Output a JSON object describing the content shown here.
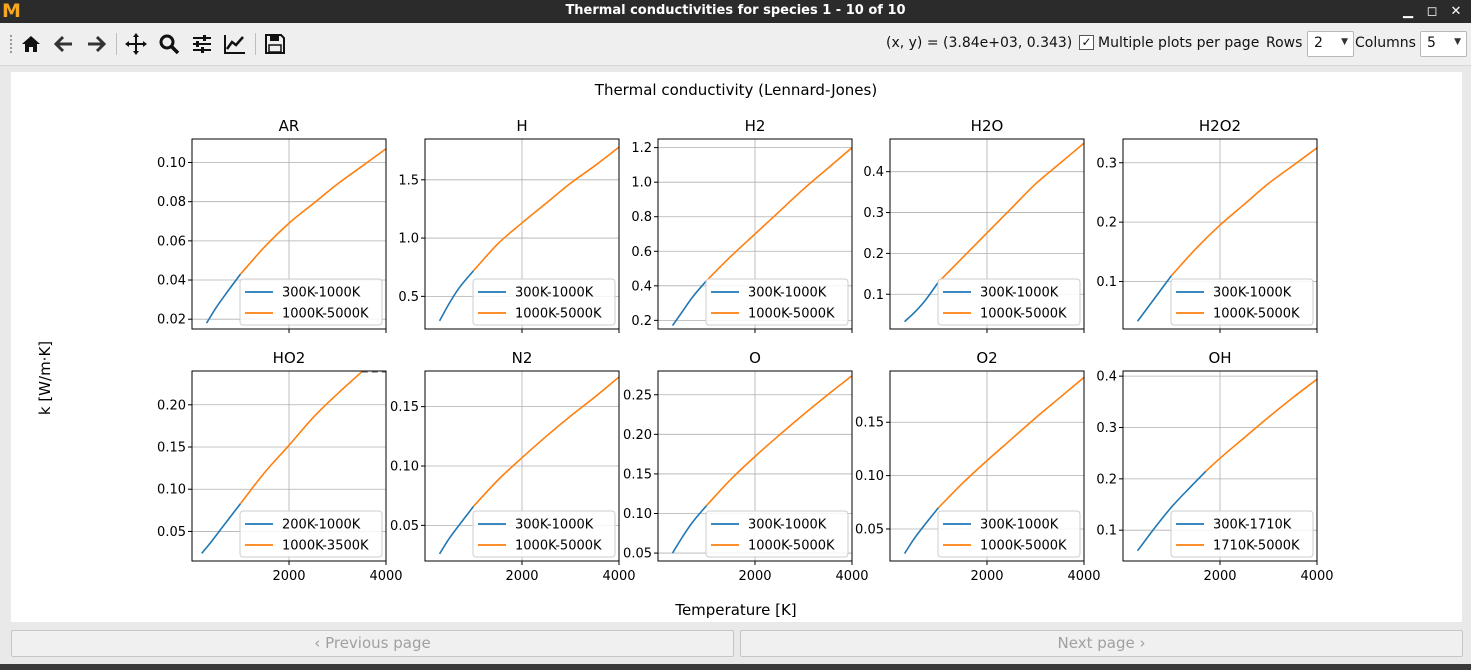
{
  "window": {
    "title": "Thermal conductivities for species 1 - 10 of 10",
    "logo": "M",
    "controls": [
      "minimize-icon",
      "restore-icon",
      "close-icon"
    ]
  },
  "toolbar": {
    "tools": [
      "home-icon",
      "back-icon",
      "forward-icon",
      "pan-icon",
      "zoom-icon",
      "configure-subplots-icon",
      "edit-axes-icon",
      "save-icon"
    ],
    "coords": "(x, y) = (3.84e+03, 0.343)",
    "multiple_plots_label": "Multiple plots per page",
    "multiple_plots_checked": true,
    "rows_label": "Rows",
    "rows_value": "2",
    "columns_label": "Columns",
    "columns_value": "5"
  },
  "navigation": {
    "previous_label": "Previous page",
    "next_label": "Next page"
  },
  "colors": {
    "series_low": "#1f77b4",
    "series_high": "#ff7f0e",
    "grid": "#b0b0b0"
  },
  "chart_data": {
    "type": "line",
    "suptitle": "Thermal conductivity (Lennard-Jones)",
    "xlabel": "Temperature [K]",
    "ylabel": "k [W/m·K]",
    "grid": true,
    "legend_placement": "lower-right",
    "xlim": [
      0,
      4000
    ],
    "x_ticks": [
      2000,
      4000
    ],
    "panels": [
      {
        "title": "AR",
        "ylim": [
          0.015,
          0.112
        ],
        "y_ticks": [
          0.02,
          0.04,
          0.06,
          0.08,
          0.1
        ],
        "y_tick_labels": [
          "0.02",
          "0.04",
          "0.06",
          "0.08",
          "0.10"
        ],
        "series": [
          {
            "name": "300K-1000K",
            "x": [
              300,
              500,
              700,
              1000
            ],
            "y": [
              0.018,
              0.026,
              0.033,
              0.043
            ]
          },
          {
            "name": "1000K-5000K",
            "x": [
              1000,
              1500,
              2000,
              2500,
              3000,
              3500,
              4000
            ],
            "y": [
              0.043,
              0.057,
              0.069,
              0.079,
              0.089,
              0.098,
              0.107
            ]
          }
        ]
      },
      {
        "title": "H",
        "ylim": [
          0.22,
          1.85
        ],
        "y_ticks": [
          0.5,
          1.0,
          1.5
        ],
        "y_tick_labels": [
          "0.5",
          "1.0",
          "1.5"
        ],
        "series": [
          {
            "name": "300K-1000K",
            "x": [
              300,
              500,
              700,
              1000
            ],
            "y": [
              0.29,
              0.44,
              0.57,
              0.72
            ]
          },
          {
            "name": "1000K-5000K",
            "x": [
              1000,
              1500,
              2000,
              2500,
              3000,
              3500,
              4000
            ],
            "y": [
              0.72,
              0.95,
              1.13,
              1.3,
              1.47,
              1.62,
              1.78
            ]
          }
        ]
      },
      {
        "title": "H2",
        "ylim": [
          0.15,
          1.25
        ],
        "y_ticks": [
          0.2,
          0.4,
          0.6,
          0.8,
          1.0,
          1.2
        ],
        "y_tick_labels": [
          "0.2",
          "0.4",
          "0.6",
          "0.8",
          "1.0",
          "1.2"
        ],
        "series": [
          {
            "name": "300K-1000K",
            "x": [
              300,
              500,
              700,
              1000
            ],
            "y": [
              0.17,
              0.25,
              0.33,
              0.43
            ]
          },
          {
            "name": "1000K-5000K",
            "x": [
              1000,
              1500,
              2000,
              2500,
              3000,
              3500,
              4000
            ],
            "y": [
              0.43,
              0.57,
              0.7,
              0.83,
              0.96,
              1.08,
              1.2
            ]
          }
        ]
      },
      {
        "title": "H2O",
        "ylim": [
          0.015,
          0.48
        ],
        "y_ticks": [
          0.1,
          0.2,
          0.3,
          0.4
        ],
        "y_tick_labels": [
          "0.1",
          "0.2",
          "0.3",
          "0.4"
        ],
        "series": [
          {
            "name": "300K-1000K",
            "x": [
              300,
              500,
              700,
              1000
            ],
            "y": [
              0.033,
              0.055,
              0.081,
              0.13
            ]
          },
          {
            "name": "1000K-5000K",
            "x": [
              1000,
              1500,
              2000,
              2500,
              3000,
              3500,
              4000
            ],
            "y": [
              0.13,
              0.19,
              0.25,
              0.31,
              0.37,
              0.42,
              0.47
            ]
          }
        ]
      },
      {
        "title": "H2O2",
        "ylim": [
          0.02,
          0.34
        ],
        "y_ticks": [
          0.1,
          0.2,
          0.3
        ],
        "y_tick_labels": [
          "0.1",
          "0.2",
          "0.3"
        ],
        "series": [
          {
            "name": "300K-1000K",
            "x": [
              300,
              500,
              700,
              1000
            ],
            "y": [
              0.033,
              0.055,
              0.077,
              0.11
            ]
          },
          {
            "name": "1000K-5000K",
            "x": [
              1000,
              1500,
              2000,
              2500,
              3000,
              3500,
              4000
            ],
            "y": [
              0.11,
              0.155,
              0.195,
              0.23,
              0.265,
              0.295,
              0.325
            ]
          }
        ]
      },
      {
        "title": "HO2",
        "ylim": [
          0.015,
          0.24
        ],
        "y_ticks": [
          0.05,
          0.1,
          0.15,
          0.2
        ],
        "y_tick_labels": [
          "0.05",
          "0.10",
          "0.15",
          "0.20"
        ],
        "series": [
          {
            "name": "200K-1000K",
            "x": [
              200,
              400,
              600,
              800,
              1000
            ],
            "y": [
              0.024,
              0.038,
              0.053,
              0.068,
              0.083
            ]
          },
          {
            "name": "1000K-3500K",
            "x": [
              1000,
              1500,
              2000,
              2500,
              3000,
              3500
            ],
            "y": [
              0.083,
              0.12,
              0.152,
              0.185,
              0.213,
              0.239
            ]
          }
        ],
        "extrapolation": {
          "x": [
            3500,
            4000
          ],
          "y": [
            0.239,
            0.239
          ]
        }
      },
      {
        "title": "N2",
        "ylim": [
          0.02,
          0.18
        ],
        "y_ticks": [
          0.05,
          0.1,
          0.15
        ],
        "y_tick_labels": [
          "0.05",
          "0.10",
          "0.15"
        ],
        "series": [
          {
            "name": "300K-1000K",
            "x": [
              300,
              500,
              700,
              1000
            ],
            "y": [
              0.026,
              0.039,
              0.05,
              0.066
            ]
          },
          {
            "name": "1000K-5000K",
            "x": [
              1000,
              1500,
              2000,
              2500,
              3000,
              3500,
              4000
            ],
            "y": [
              0.066,
              0.088,
              0.107,
              0.125,
              0.142,
              0.158,
              0.175
            ]
          }
        ]
      },
      {
        "title": "O",
        "ylim": [
          0.04,
          0.28
        ],
        "y_ticks": [
          0.05,
          0.1,
          0.15,
          0.2,
          0.25
        ],
        "y_tick_labels": [
          "0.05",
          "0.10",
          "0.15",
          "0.20",
          "0.25"
        ],
        "series": [
          {
            "name": "300K-1000K",
            "x": [
              300,
              500,
              700,
              1000
            ],
            "y": [
              0.05,
              0.07,
              0.088,
              0.11
            ]
          },
          {
            "name": "1000K-5000K",
            "x": [
              1000,
              1500,
              2000,
              2500,
              3000,
              3500,
              4000
            ],
            "y": [
              0.11,
              0.143,
              0.172,
              0.199,
              0.225,
              0.25,
              0.274
            ]
          }
        ]
      },
      {
        "title": "O2",
        "ylim": [
          0.02,
          0.198
        ],
        "y_ticks": [
          0.05,
          0.1,
          0.15
        ],
        "y_tick_labels": [
          "0.05",
          "0.10",
          "0.15"
        ],
        "series": [
          {
            "name": "300K-1000K",
            "x": [
              300,
              500,
              700,
              1000
            ],
            "y": [
              0.027,
              0.041,
              0.053,
              0.07
            ]
          },
          {
            "name": "1000K-5000K",
            "x": [
              1000,
              1500,
              2000,
              2500,
              3000,
              3500,
              4000
            ],
            "y": [
              0.07,
              0.093,
              0.114,
              0.134,
              0.154,
              0.173,
              0.192
            ]
          }
        ]
      },
      {
        "title": "OH",
        "ylim": [
          0.04,
          0.41
        ],
        "y_ticks": [
          0.1,
          0.2,
          0.3,
          0.4
        ],
        "y_tick_labels": [
          "0.1",
          "0.2",
          "0.3",
          "0.4"
        ],
        "series": [
          {
            "name": "300K-1710K",
            "x": [
              300,
              700,
              1000,
              1400,
              1710
            ],
            "y": [
              0.06,
              0.11,
              0.145,
              0.185,
              0.215
            ]
          },
          {
            "name": "1710K-5000K",
            "x": [
              1710,
              2000,
              2500,
              3000,
              3500,
              4000
            ],
            "y": [
              0.215,
              0.24,
              0.28,
              0.32,
              0.358,
              0.394
            ]
          }
        ]
      }
    ]
  }
}
